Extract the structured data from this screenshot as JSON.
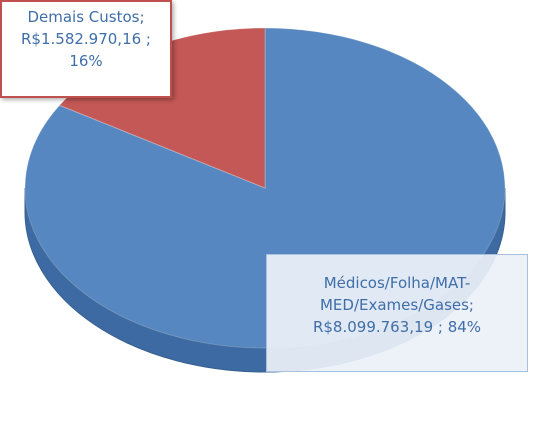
{
  "chart_data": {
    "type": "pie",
    "categories": [
      "Médicos/Folha/MAT-MED/Exames/Gases;",
      "Demais Custos;"
    ],
    "values": [
      8099763.19,
      1582970.16
    ],
    "value_labels": [
      "R$8.099.763,19 ; 84%",
      "R$1.582.970,16 ; 16%"
    ],
    "colors": [
      "#4f81bd",
      "#c0504d"
    ]
  }
}
